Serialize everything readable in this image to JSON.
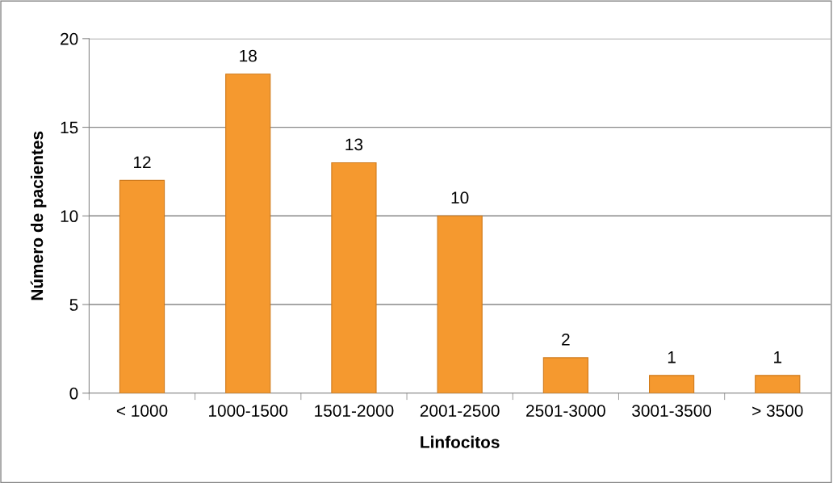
{
  "chart_data": {
    "type": "bar",
    "xlabel": "Linfocitos",
    "ylabel": "Número de pacientes",
    "categories": [
      "< 1000",
      "1000-1500",
      "1501-2000",
      "2001-2500",
      "2501-3000",
      "3001-3500",
      "> 3500"
    ],
    "values": [
      12,
      18,
      13,
      10,
      2,
      1,
      1
    ],
    "color": "#f5992f",
    "ylim": [
      0,
      20
    ],
    "yticks": [
      0,
      5,
      10,
      15,
      20
    ],
    "grid": "y",
    "data_labels": true
  }
}
